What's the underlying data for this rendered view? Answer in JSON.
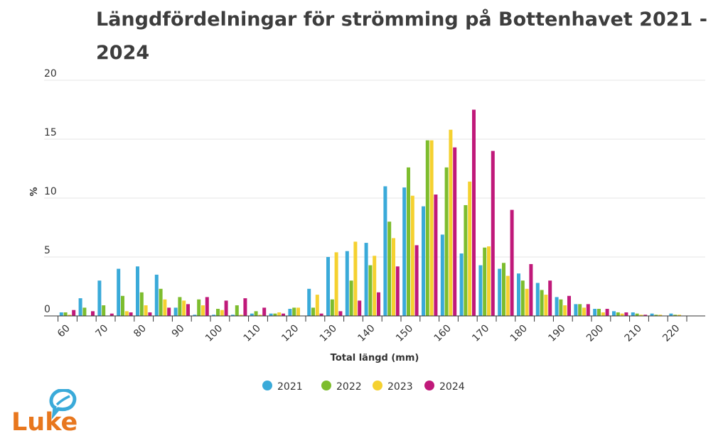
{
  "chart_data": {
    "type": "bar",
    "title": "Längdfördelningar för strömming  på Bottenhavet 2021 - 2024",
    "xlabel": "Total längd (mm)",
    "ylabel": "%",
    "ylim": [
      0,
      20
    ],
    "y_ticks": [
      0,
      5,
      10,
      15,
      20
    ],
    "x_tick_labels": [
      "60",
      "70",
      "80",
      "90",
      "100",
      "110",
      "120",
      "130",
      "140",
      "150",
      "160",
      "170",
      "180",
      "190",
      "200",
      "210",
      "220"
    ],
    "categories": [
      "60",
      "65",
      "70",
      "75",
      "80",
      "85",
      "90",
      "95",
      "100",
      "105",
      "110",
      "115",
      "120",
      "125",
      "130",
      "135",
      "140",
      "145",
      "150",
      "155",
      "160",
      "165",
      "170",
      "175",
      "180",
      "185",
      "190",
      "195",
      "200",
      "205",
      "210",
      "215",
      "220"
    ],
    "grid": true,
    "legend_position": "bottom",
    "series": [
      {
        "name": "2021",
        "color": "#3aaad9",
        "values": [
          0.3,
          1.5,
          3.0,
          4.0,
          4.2,
          3.5,
          0.7,
          0.1,
          0.1,
          0.1,
          0.2,
          0.2,
          0.6,
          2.3,
          5.0,
          5.5,
          6.2,
          11.0,
          10.9,
          9.3,
          6.9,
          5.3,
          4.3,
          4.0,
          3.6,
          2.8,
          1.6,
          1.0,
          0.6,
          0.4,
          0.3,
          0.2,
          0.2
        ]
      },
      {
        "name": "2022",
        "color": "#7dbd2e",
        "values": [
          0.3,
          0.7,
          0.9,
          1.7,
          2.0,
          2.3,
          1.6,
          1.4,
          0.6,
          0.9,
          0.4,
          0.2,
          0.7,
          0.7,
          1.4,
          3.0,
          4.3,
          8.0,
          12.6,
          14.9,
          12.6,
          9.4,
          5.8,
          4.5,
          3.0,
          2.2,
          1.4,
          1.0,
          0.6,
          0.3,
          0.2,
          0.1,
          0.1
        ]
      },
      {
        "name": "2023",
        "color": "#f5d130",
        "values": [
          0.1,
          0.0,
          0.0,
          0.4,
          0.9,
          1.4,
          1.3,
          0.9,
          0.5,
          0.1,
          0.1,
          0.3,
          0.7,
          1.8,
          5.4,
          6.3,
          5.1,
          6.6,
          10.2,
          14.9,
          15.8,
          11.4,
          5.9,
          3.4,
          2.3,
          1.8,
          0.9,
          0.7,
          0.3,
          0.2,
          0.1,
          0.1,
          0.1
        ]
      },
      {
        "name": "2024",
        "color": "#c0197a",
        "values": [
          0.5,
          0.4,
          0.2,
          0.3,
          0.3,
          0.7,
          1.0,
          1.6,
          1.3,
          1.5,
          0.7,
          0.2,
          0.0,
          0.2,
          0.4,
          1.3,
          2.0,
          4.2,
          6.0,
          10.3,
          14.3,
          17.5,
          14.0,
          9.0,
          4.4,
          3.0,
          1.7,
          1.0,
          0.6,
          0.3,
          0.1,
          0.0,
          0.0
        ]
      }
    ]
  },
  "logo": {
    "text": "Luke",
    "color": "#e8771e",
    "bubble_color": "#3aaad9"
  }
}
